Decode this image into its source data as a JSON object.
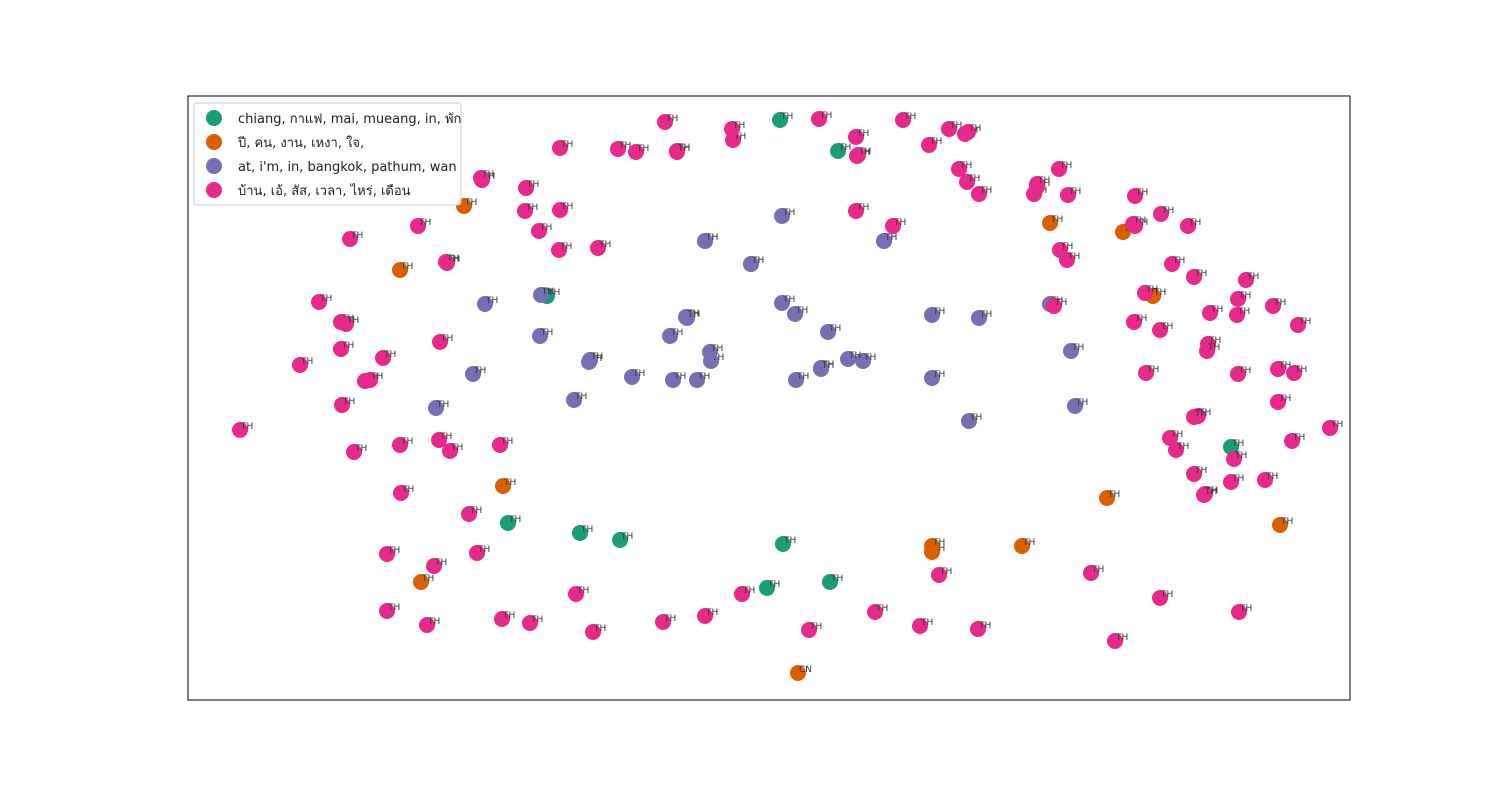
{
  "chart_data": {
    "type": "scatter",
    "title": "",
    "xlabel": "",
    "ylabel": "",
    "axes_visible": false,
    "xlim": [
      0,
      1162
    ],
    "ylim": [
      0,
      604
    ],
    "legend": {
      "placement": "top-left",
      "entries": [
        {
          "label": "chiang, กาแฟ, mai, mueang, in, พัก",
          "color": "#1b9e77"
        },
        {
          "label": "ปี, คน, งาน, เหงา, ใจ,",
          "color": "#d95f02"
        },
        {
          "label": "at, i'm, in, bangkok, pathum, wan",
          "color": "#7570b3"
        },
        {
          "label": " บ้าน, เอ้, สัส, เวลา, ไหร่, เดือน",
          "color": "#e7298a"
        }
      ]
    },
    "series": [
      {
        "name": "chiang, กาแฟ, mai, mueang, in, พัก",
        "color": "#1b9e77",
        "points": [
          {
            "x": 592,
            "y": 580,
            "label": "TH"
          },
          {
            "x": 650,
            "y": 549,
            "label": "TH"
          },
          {
            "x": 359,
            "y": 404,
            "label": "TH"
          },
          {
            "x": 1043,
            "y": 253,
            "label": "TH"
          },
          {
            "x": 320,
            "y": 177,
            "label": "TH"
          },
          {
            "x": 392,
            "y": 167,
            "label": "TH"
          },
          {
            "x": 432,
            "y": 160,
            "label": "TH"
          },
          {
            "x": 595,
            "y": 156,
            "label": "TH"
          },
          {
            "x": 579,
            "y": 112,
            "label": "TH"
          },
          {
            "x": 642,
            "y": 118,
            "label": "TH"
          }
        ]
      },
      {
        "name": "ปี, คน, งาน, เหงา, ใจ,",
        "color": "#d95f02",
        "points": [
          {
            "x": 276,
            "y": 494,
            "label": "TH"
          },
          {
            "x": 212,
            "y": 430,
            "label": "TH"
          },
          {
            "x": 862,
            "y": 477,
            "label": "TH"
          },
          {
            "x": 935,
            "y": 468,
            "label": "TH"
          },
          {
            "x": 965,
            "y": 404,
            "label": "TH"
          },
          {
            "x": 315,
            "y": 214,
            "label": "TH"
          },
          {
            "x": 919,
            "y": 202,
            "label": "TH"
          },
          {
            "x": 744,
            "y": 148,
            "label": "TH"
          },
          {
            "x": 834,
            "y": 154,
            "label": "TH"
          },
          {
            "x": 1092,
            "y": 175,
            "label": "TH"
          },
          {
            "x": 233,
            "y": 118,
            "label": "TH"
          },
          {
            "x": 744,
            "y": 154,
            "label": "TH"
          },
          {
            "x": 610,
            "y": 27,
            "label": "CN"
          }
        ]
      },
      {
        "name": "at, i'm, in, bangkok, pathum, wan",
        "color": "#7570b3",
        "points": [
          {
            "x": 517,
            "y": 459,
            "label": "TH"
          },
          {
            "x": 696,
            "y": 459,
            "label": "TH"
          },
          {
            "x": 594,
            "y": 484,
            "label": "TH"
          },
          {
            "x": 563,
            "y": 436,
            "label": "TH"
          },
          {
            "x": 297,
            "y": 396,
            "label": "TH"
          },
          {
            "x": 498,
            "y": 383,
            "label": "TH"
          },
          {
            "x": 352,
            "y": 364,
            "label": "TH"
          },
          {
            "x": 607,
            "y": 386,
            "label": "TH"
          },
          {
            "x": 640,
            "y": 368,
            "label": "TH"
          },
          {
            "x": 744,
            "y": 385,
            "label": "TH"
          },
          {
            "x": 791,
            "y": 382,
            "label": "TH"
          },
          {
            "x": 862,
            "y": 396,
            "label": "TH"
          },
          {
            "x": 482,
            "y": 364,
            "label": "TH"
          },
          {
            "x": 523,
            "y": 339,
            "label": "TH"
          },
          {
            "x": 401,
            "y": 338,
            "label": "TH"
          },
          {
            "x": 499,
            "y": 382,
            "label": "TH"
          },
          {
            "x": 522,
            "y": 348,
            "label": "TH"
          },
          {
            "x": 633,
            "y": 332,
            "label": "TH"
          },
          {
            "x": 675,
            "y": 339,
            "label": "TH"
          },
          {
            "x": 744,
            "y": 322,
            "label": "TH"
          },
          {
            "x": 485,
            "y": 320,
            "label": "TH"
          },
          {
            "x": 509,
            "y": 320,
            "label": "TH"
          },
          {
            "x": 633,
            "y": 331,
            "label": "TH"
          },
          {
            "x": 402,
            "y": 340,
            "label": "TH"
          },
          {
            "x": 285,
            "y": 326,
            "label": "TH"
          },
          {
            "x": 248,
            "y": 292,
            "label": "TH"
          },
          {
            "x": 386,
            "y": 300,
            "label": "TH"
          },
          {
            "x": 444,
            "y": 323,
            "label": "TH"
          },
          {
            "x": 608,
            "y": 320,
            "label": "TH"
          },
          {
            "x": 660,
            "y": 341,
            "label": "TH"
          },
          {
            "x": 781,
            "y": 279,
            "label": "TH"
          },
          {
            "x": 887,
            "y": 294,
            "label": "TH"
          },
          {
            "x": 594,
            "y": 397,
            "label": "TH"
          },
          {
            "x": 563,
            "y": 436,
            "label": "TH"
          },
          {
            "x": 696,
            "y": 459,
            "label": "TH"
          },
          {
            "x": 517,
            "y": 459,
            "label": "TH"
          },
          {
            "x": 353,
            "y": 405,
            "label": "TH"
          },
          {
            "x": 883,
            "y": 349,
            "label": "TH"
          }
        ]
      },
      {
        "name": " บ้าน, เอ้, สัส, เวลา, ไหร่, เดือน",
        "color": "#e7298a",
        "points": [
          {
            "x": 52,
            "y": 270,
            "label": "TH"
          },
          {
            "x": 112,
            "y": 335,
            "label": "TH"
          },
          {
            "x": 154,
            "y": 295,
            "label": "TH"
          },
          {
            "x": 177,
            "y": 319,
            "label": "TH"
          },
          {
            "x": 131,
            "y": 398,
            "label": "TH"
          },
          {
            "x": 153,
            "y": 351,
            "label": "TH"
          },
          {
            "x": 162,
            "y": 461,
            "label": "TH"
          },
          {
            "x": 153,
            "y": 378,
            "label": "TH"
          },
          {
            "x": 158,
            "y": 376,
            "label": "TH"
          },
          {
            "x": 182,
            "y": 320,
            "label": "TH"
          },
          {
            "x": 230,
            "y": 474,
            "label": "TH"
          },
          {
            "x": 259,
            "y": 437,
            "label": "TH"
          },
          {
            "x": 252,
            "y": 358,
            "label": "TH"
          },
          {
            "x": 294,
            "y": 520,
            "label": "TH"
          },
          {
            "x": 371,
            "y": 450,
            "label": "TH"
          },
          {
            "x": 338,
            "y": 512,
            "label": "TH"
          },
          {
            "x": 410,
            "y": 452,
            "label": "TH"
          },
          {
            "x": 489,
            "y": 549,
            "label": "TH"
          },
          {
            "x": 293,
            "y": 522,
            "label": "TH"
          },
          {
            "x": 258,
            "y": 438,
            "label": "TH"
          },
          {
            "x": 337,
            "y": 489,
            "label": "TH"
          },
          {
            "x": 372,
            "y": 552,
            "label": "TH"
          },
          {
            "x": 430,
            "y": 551,
            "label": "TH"
          },
          {
            "x": 489,
            "y": 548,
            "label": "TH"
          },
          {
            "x": 545,
            "y": 560,
            "label": "TH"
          },
          {
            "x": 669,
            "y": 544,
            "label": "TH"
          },
          {
            "x": 668,
            "y": 489,
            "label": "TH"
          },
          {
            "x": 670,
            "y": 545,
            "label": "TH"
          },
          {
            "x": 779,
            "y": 518,
            "label": "TH"
          },
          {
            "x": 846,
            "y": 506,
            "label": "TH"
          },
          {
            "x": 871,
            "y": 531,
            "label": "TH"
          },
          {
            "x": 879,
            "y": 440,
            "label": "TH"
          },
          {
            "x": 866,
            "y": 394,
            "label": "TH"
          },
          {
            "x": 947,
            "y": 474,
            "label": "TH"
          },
          {
            "x": 946,
            "y": 378,
            "label": "TH"
          },
          {
            "x": 957,
            "y": 407,
            "label": "TH"
          },
          {
            "x": 1020,
            "y": 356,
            "label": "TH"
          },
          {
            "x": 1050,
            "y": 401,
            "label": "TH"
          },
          {
            "x": 1050,
            "y": 326,
            "label": "TH"
          },
          {
            "x": 1090,
            "y": 331,
            "label": "TH"
          },
          {
            "x": 1110,
            "y": 375,
            "label": "TH"
          },
          {
            "x": 1104,
            "y": 259,
            "label": "TH"
          },
          {
            "x": 1090,
            "y": 298,
            "label": "TH"
          },
          {
            "x": 1058,
            "y": 420,
            "label": "TH"
          },
          {
            "x": 1022,
            "y": 387,
            "label": "TH"
          },
          {
            "x": 984,
            "y": 436,
            "label": "TH"
          },
          {
            "x": 972,
            "y": 370,
            "label": "TH"
          },
          {
            "x": 982,
            "y": 262,
            "label": "TH"
          },
          {
            "x": 958,
            "y": 327,
            "label": "TH"
          },
          {
            "x": 1010,
            "y": 284,
            "label": "TH"
          },
          {
            "x": 1006,
            "y": 283,
            "label": "TH"
          },
          {
            "x": 1017,
            "y": 206,
            "label": "TH"
          },
          {
            "x": 1043,
            "y": 218,
            "label": "TH"
          },
          {
            "x": 1077,
            "y": 220,
            "label": "TH"
          },
          {
            "x": 988,
            "y": 250,
            "label": "TH"
          },
          {
            "x": 1106,
            "y": 327,
            "label": "TH"
          },
          {
            "x": 1142,
            "y": 272,
            "label": "TH"
          },
          {
            "x": 1049,
            "y": 385,
            "label": "TH"
          },
          {
            "x": 1085,
            "y": 394,
            "label": "TH"
          },
          {
            "x": 1046,
            "y": 241,
            "label": "TH"
          },
          {
            "x": 1006,
            "y": 423,
            "label": "TH"
          },
          {
            "x": 1019,
            "y": 349,
            "label": "TH"
          },
          {
            "x": 1016,
            "y": 205,
            "label": "TH"
          },
          {
            "x": 1006,
            "y": 226,
            "label": "TH"
          },
          {
            "x": 1000,
            "y": 474,
            "label": "TH"
          },
          {
            "x": 973,
            "y": 486,
            "label": "TH"
          },
          {
            "x": 947,
            "y": 504,
            "label": "TH"
          },
          {
            "x": 849,
            "y": 513,
            "label": "TH"
          },
          {
            "x": 872,
            "y": 450,
            "label": "TH"
          },
          {
            "x": 771,
            "y": 531,
            "label": "TH"
          },
          {
            "x": 705,
            "y": 474,
            "label": "TH"
          },
          {
            "x": 777,
            "y": 566,
            "label": "TH"
          },
          {
            "x": 761,
            "y": 571,
            "label": "TH"
          },
          {
            "x": 791,
            "y": 506,
            "label": "TH"
          },
          {
            "x": 715,
            "y": 580,
            "label": "TH"
          },
          {
            "x": 741,
            "y": 555,
            "label": "TH"
          },
          {
            "x": 780,
            "y": 568,
            "label": "TH"
          },
          {
            "x": 880,
            "y": 505,
            "label": "TH"
          },
          {
            "x": 945,
            "y": 476,
            "label": "TH"
          },
          {
            "x": 849,
            "y": 516,
            "label": "TH"
          },
          {
            "x": 668,
            "y": 563,
            "label": "TH"
          },
          {
            "x": 631,
            "y": 581,
            "label": "TH"
          },
          {
            "x": 544,
            "y": 571,
            "label": "TH"
          },
          {
            "x": 477,
            "y": 578,
            "label": "TH"
          },
          {
            "x": 448,
            "y": 548,
            "label": "TH"
          },
          {
            "x": 372,
            "y": 490,
            "label": "TH"
          },
          {
            "x": 351,
            "y": 469,
            "label": "TH"
          },
          {
            "x": 312,
            "y": 255,
            "label": "TH"
          },
          {
            "x": 166,
            "y": 248,
            "label": "TH"
          },
          {
            "x": 212,
            "y": 255,
            "label": "TH"
          },
          {
            "x": 262,
            "y": 249,
            "label": "TH"
          },
          {
            "x": 195,
            "y": 342,
            "label": "TH"
          },
          {
            "x": 281,
            "y": 186,
            "label": "TH"
          },
          {
            "x": 213,
            "y": 207,
            "label": "TH"
          },
          {
            "x": 251,
            "y": 260,
            "label": "TH"
          },
          {
            "x": 289,
            "y": 147,
            "label": "TH"
          },
          {
            "x": 199,
            "y": 146,
            "label": "TH"
          },
          {
            "x": 246,
            "y": 134,
            "label": "TH"
          },
          {
            "x": 199,
            "y": 89,
            "label": "TH"
          },
          {
            "x": 239,
            "y": 75,
            "label": "TH"
          },
          {
            "x": 314,
            "y": 81,
            "label": "TH"
          },
          {
            "x": 342,
            "y": 77,
            "label": "TH"
          },
          {
            "x": 388,
            "y": 106,
            "label": "TH"
          },
          {
            "x": 405,
            "y": 68,
            "label": "TH"
          },
          {
            "x": 475,
            "y": 78,
            "label": "TH"
          },
          {
            "x": 517,
            "y": 84,
            "label": "TH"
          },
          {
            "x": 554,
            "y": 106,
            "label": "TH"
          },
          {
            "x": 621,
            "y": 70,
            "label": "TH"
          },
          {
            "x": 687,
            "y": 88,
            "label": "TH"
          },
          {
            "x": 732,
            "y": 74,
            "label": "TH"
          },
          {
            "x": 751,
            "y": 125,
            "label": "TH"
          },
          {
            "x": 790,
            "y": 71,
            "label": "TH"
          },
          {
            "x": 903,
            "y": 127,
            "label": "TH"
          },
          {
            "x": 927,
            "y": 59,
            "label": "TH"
          },
          {
            "x": 972,
            "y": 102,
            "label": "TH"
          },
          {
            "x": 1051,
            "y": 88,
            "label": "TH"
          }
        ]
      }
    ]
  }
}
